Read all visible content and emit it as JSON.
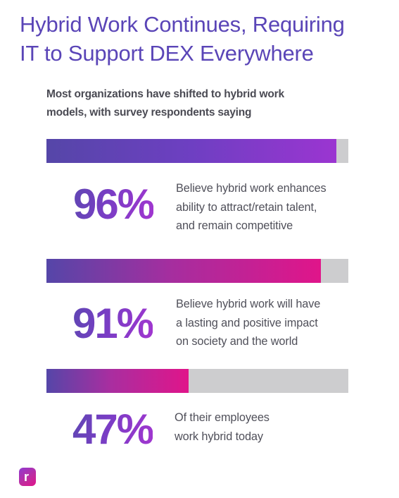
{
  "header": {
    "title_line_1": "Hybrid Work Continues, Requiring",
    "title_line_2": "IT to Support DEX Everywhere"
  },
  "intro": {
    "line_1": "Most organizations have shifted to hybrid work",
    "line_2": "models, with survey respondents saying"
  },
  "chart_data": {
    "type": "bar",
    "orientation": "horizontal",
    "categories": [
      "Believe hybrid work enhances ability to attract/retain talent, and remain competitive",
      "Believe hybrid work will have a lasting and positive impact on society and the world",
      "Of their employees work hybrid today"
    ],
    "values": [
      96,
      91,
      47
    ],
    "ylim": [
      0,
      100
    ],
    "title": "",
    "xlabel": "",
    "ylabel": "",
    "legend": "none",
    "grid": false
  },
  "stats": [
    {
      "value_label": "96%",
      "value": 96,
      "description_lines": [
        "Believe hybrid work enhances",
        "ability to attract/retain talent,",
        "and remain competitive"
      ],
      "fill_color": "#9b35d1"
    },
    {
      "value_label": "91%",
      "value": 91,
      "description_lines": [
        "Believe hybrid work will have",
        "a lasting and positive impact",
        "on society and the world"
      ],
      "fill_color": "#e0158a"
    },
    {
      "value_label": "47%",
      "value": 47,
      "description_lines": [
        "Of their employees",
        "work hybrid today"
      ],
      "fill_color": "#e0158a"
    }
  ],
  "colors": {
    "title": "#5a45b7",
    "track": "#cdcdcf",
    "bar_start": "#5546a8",
    "bar_end_violet": "#9b35d1",
    "bar_end_magenta": "#e0158a"
  },
  "logo": {
    "letter": "r",
    "icon_name": "brand-r-icon"
  }
}
